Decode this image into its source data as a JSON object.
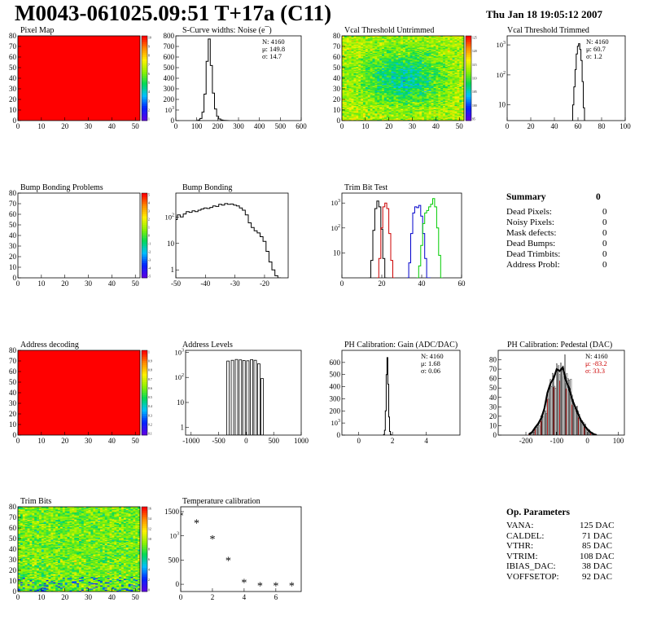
{
  "header": {
    "title": "M0043-061025.09:51 T+17a (C11)",
    "date": "Thu Jan 18 19:05:12 2007"
  },
  "colors": {
    "red": "#ff0000",
    "black": "#000000",
    "green": "#00cc00",
    "blue": "#0000cc",
    "darkred": "#cc0000"
  },
  "chart_data": [
    {
      "id": "pixel-map",
      "type": "heatmap",
      "title": "Pixel Map",
      "fill": "uniform-max",
      "xticks": [
        "0",
        "10",
        "20",
        "30",
        "40",
        "50"
      ],
      "yticks": [
        "0",
        "10",
        "20",
        "30",
        "40",
        "50",
        "60",
        "70",
        "80"
      ],
      "xlim": [
        0,
        52
      ],
      "ylim": [
        0,
        80
      ],
      "zticks": [
        "10",
        "9",
        "8",
        "7",
        "6",
        "5",
        "4",
        "3",
        "2",
        "1"
      ]
    },
    {
      "id": "scurve-noise",
      "type": "line",
      "title": "S-Curve widths: Noise (e¯)",
      "stats": {
        "n": "N: 4160",
        "mu": "μ: 149.8",
        "sigma": "σ: 14.7"
      },
      "xticks": [
        "0",
        "100",
        "200",
        "300",
        "400",
        "500",
        "600"
      ],
      "yticks": [
        "0",
        "100",
        "200",
        "300",
        "400",
        "500",
        "600",
        "700",
        "800"
      ],
      "xlim": [
        0,
        600
      ],
      "ylim": [
        0,
        800
      ],
      "x": [
        100,
        110,
        120,
        130,
        140,
        150,
        160,
        170,
        180,
        190,
        200,
        210,
        220,
        230,
        240,
        250
      ],
      "y": [
        0,
        5,
        20,
        80,
        250,
        560,
        770,
        520,
        260,
        110,
        40,
        15,
        5,
        2,
        1,
        0
      ]
    },
    {
      "id": "vcal-untrimmed",
      "type": "heatmap",
      "title": "Vcal Threshold Untrimmed",
      "fill": "noise",
      "xticks": [
        "0",
        "10",
        "20",
        "30",
        "40",
        "50"
      ],
      "yticks": [
        "0",
        "10",
        "20",
        "30",
        "40",
        "50",
        "60",
        "70",
        "80"
      ],
      "xlim": [
        0,
        52
      ],
      "ylim": [
        0,
        80
      ],
      "zticks": [
        "125",
        "120",
        "115",
        "110",
        "105",
        "100",
        "95"
      ]
    },
    {
      "id": "vcal-trimmed",
      "type": "line",
      "title": "Vcal Threshold Trimmed",
      "ylog": true,
      "stats": {
        "n": "N: 4160",
        "mu": "μ: 60.7",
        "sigma": "σ:  1.2"
      },
      "xticks": [
        "0",
        "20",
        "40",
        "60",
        "80",
        "100"
      ],
      "yticks": [
        "10",
        "10²",
        "10³"
      ],
      "xlim": [
        0,
        100
      ],
      "ylim": [
        3,
        2000
      ],
      "x": [
        55,
        56,
        57,
        58,
        59,
        60,
        61,
        62,
        63,
        64,
        65,
        66
      ],
      "y": [
        3,
        10,
        40,
        150,
        500,
        900,
        1100,
        700,
        300,
        60,
        8,
        3
      ]
    },
    {
      "id": "bump-problems",
      "type": "heatmap",
      "title": "Bump Bonding Problems",
      "fill": "empty",
      "xticks": [
        "0",
        "10",
        "20",
        "30",
        "40",
        "50"
      ],
      "yticks": [
        "0",
        "10",
        "20",
        "30",
        "40",
        "50",
        "60",
        "70",
        "80"
      ],
      "xlim": [
        0,
        52
      ],
      "ylim": [
        0,
        80
      ],
      "zticks": [
        "5",
        "4",
        "3",
        "2",
        "1",
        "0",
        "-1",
        "-2",
        "-3",
        "-4",
        "-5"
      ]
    },
    {
      "id": "bump-bonding",
      "type": "line",
      "title": "Bump Bonding",
      "ylog": true,
      "xticks": [
        "-50",
        "-40",
        "-30",
        "-20"
      ],
      "yticks": [
        "1",
        "10",
        "10²"
      ],
      "xlim": [
        -50,
        -12
      ],
      "ylim": [
        0.5,
        800
      ],
      "x": [
        -50,
        -49,
        -48,
        -47,
        -46,
        -45,
        -44,
        -43,
        -42,
        -41,
        -40,
        -39,
        -38,
        -37,
        -36,
        -35,
        -34,
        -33,
        -32,
        -31,
        -30,
        -29,
        -28,
        -27,
        -26,
        -25,
        -24,
        -23,
        -22,
        -21,
        -20,
        -19,
        -18,
        -17,
        -16,
        -15
      ],
      "y": [
        80,
        120,
        100,
        130,
        160,
        150,
        170,
        160,
        180,
        200,
        220,
        210,
        230,
        260,
        250,
        300,
        280,
        320,
        300,
        310,
        280,
        260,
        220,
        180,
        120,
        60,
        40,
        30,
        25,
        18,
        12,
        5,
        2,
        1,
        0.6,
        0.5
      ]
    },
    {
      "id": "trim-bit-test",
      "type": "line",
      "title": "Trim Bit Test",
      "ylog": true,
      "xticks": [
        "0",
        "20",
        "40",
        "60"
      ],
      "yticks": [
        "10",
        "10²",
        "10³"
      ],
      "xlim": [
        0,
        60
      ],
      "ylim": [
        1,
        2500
      ],
      "series": [
        {
          "color": "#000000",
          "x": [
            14,
            15,
            16,
            17,
            18,
            19,
            20,
            21,
            22
          ],
          "y": [
            1,
            5,
            80,
            600,
            1200,
            700,
            90,
            6,
            1
          ]
        },
        {
          "color": "#cc0000",
          "x": [
            18,
            19,
            20,
            21,
            22,
            23,
            24,
            25,
            26
          ],
          "y": [
            1,
            6,
            100,
            700,
            1000,
            600,
            60,
            5,
            1
          ]
        },
        {
          "color": "#0000cc",
          "x": [
            33,
            34,
            35,
            36,
            37,
            38,
            39,
            40,
            41,
            42,
            43,
            44
          ],
          "y": [
            1,
            4,
            60,
            400,
            700,
            650,
            800,
            300,
            60,
            6,
            1,
            1
          ]
        },
        {
          "color": "#00cc00",
          "x": [
            38,
            39,
            40,
            41,
            42,
            43,
            44,
            45,
            46,
            47,
            48,
            49,
            50
          ],
          "y": [
            1,
            3,
            20,
            150,
            400,
            500,
            700,
            900,
            1500,
            700,
            100,
            8,
            1
          ]
        }
      ]
    },
    {
      "id": "address-decoding",
      "type": "heatmap",
      "title": "Address decoding",
      "fill": "uniform-max",
      "xticks": [
        "0",
        "10",
        "20",
        "30",
        "40",
        "50"
      ],
      "yticks": [
        "0",
        "10",
        "20",
        "30",
        "40",
        "50",
        "60",
        "70",
        "80"
      ],
      "xlim": [
        0,
        52
      ],
      "ylim": [
        0,
        80
      ],
      "zticks": [
        "1",
        "0.9",
        "0.8",
        "0.7",
        "0.6",
        "0.5",
        "0.4",
        "0.3",
        "0.2",
        "0.1"
      ]
    },
    {
      "id": "address-levels",
      "type": "line",
      "title": "Address Levels",
      "ylog": true,
      "xticks": [
        "-1000",
        "-500",
        "0",
        "500",
        "1000"
      ],
      "yticks": [
        "1",
        "10",
        "10²",
        "10³"
      ],
      "xlim": [
        -1100,
        1000
      ],
      "ylim": [
        0.5,
        1200
      ],
      "spikes": [
        -330,
        -250,
        -175,
        -105,
        -40,
        30,
        100,
        165,
        230,
        290
      ],
      "heights": [
        450,
        480,
        520,
        500,
        470,
        460,
        510,
        480,
        350,
        90
      ]
    },
    {
      "id": "ph-gain",
      "type": "line",
      "title": "PH Calibration: Gain (ADC/DAC)",
      "stats": {
        "n": "N: 4160",
        "mu": "μ: 1.68",
        "sigma": "σ: 0.06"
      },
      "xticks": [
        "0",
        "2",
        "4"
      ],
      "yticks": [
        "0",
        "100",
        "200",
        "300",
        "400",
        "500",
        "600"
      ],
      "xlim": [
        -1,
        6
      ],
      "ylim": [
        0,
        700
      ],
      "x": [
        1.45,
        1.5,
        1.55,
        1.6,
        1.65,
        1.7,
        1.75,
        1.8,
        1.85,
        1.9,
        1.95
      ],
      "y": [
        0,
        5,
        40,
        200,
        500,
        640,
        420,
        150,
        30,
        5,
        0
      ]
    },
    {
      "id": "ph-pedestal",
      "type": "line",
      "title": "PH Calibration: Pedestal (DAC)",
      "stats": {
        "n": "N: 4160",
        "mu": "μ: -83.2",
        "sigma": "σ: 33.3"
      },
      "xticks": [
        "-200",
        "-100",
        "0",
        "100"
      ],
      "yticks": [
        "0",
        "10",
        "20",
        "30",
        "40",
        "50",
        "60",
        "70",
        "80"
      ],
      "xlim": [
        -290,
        120
      ],
      "ylim": [
        0,
        90
      ],
      "x": [
        -190,
        -180,
        -170,
        -160,
        -150,
        -140,
        -130,
        -120,
        -110,
        -100,
        -90,
        -80,
        -70,
        -60,
        -50,
        -40,
        -30,
        -20,
        -10,
        0,
        10,
        20,
        30
      ],
      "y": [
        1,
        3,
        8,
        12,
        18,
        28,
        45,
        55,
        60,
        70,
        68,
        72,
        58,
        50,
        38,
        30,
        22,
        15,
        10,
        6,
        3,
        1,
        0
      ]
    },
    {
      "id": "trim-bits",
      "type": "heatmap",
      "title": "Trim Bits",
      "fill": "trimbits",
      "xticks": [
        "0",
        "10",
        "20",
        "30",
        "40",
        "50"
      ],
      "yticks": [
        "0",
        "10",
        "20",
        "30",
        "40",
        "50",
        "60",
        "70",
        "80"
      ],
      "xlim": [
        0,
        52
      ],
      "ylim": [
        0,
        80
      ],
      "zticks": [
        "16",
        "14",
        "12",
        "10",
        "8",
        "6",
        "4",
        "2",
        "0"
      ]
    },
    {
      "id": "temperature-calibration",
      "type": "scatter",
      "title": "Temperature calibration",
      "xticks": [
        "0",
        "2",
        "4",
        "6"
      ],
      "yticks": [
        "0",
        "500",
        "1000",
        "1500"
      ],
      "xlim": [
        0,
        7.6
      ],
      "ylim": [
        -150,
        1600
      ],
      "x": [
        0,
        1,
        2,
        3,
        4,
        5,
        6,
        7
      ],
      "y": [
        1420,
        1270,
        940,
        500,
        40,
        -20,
        -20,
        -20
      ]
    }
  ],
  "summary": {
    "title": "Summary",
    "total": "0",
    "rows": [
      {
        "label": "Dead Pixels:",
        "value": "0"
      },
      {
        "label": "Noisy Pixels:",
        "value": "0"
      },
      {
        "label": "Mask defects:",
        "value": "0"
      },
      {
        "label": "Dead Bumps:",
        "value": "0"
      },
      {
        "label": "Dead Trimbits:",
        "value": "0"
      },
      {
        "label": "Address Probl:",
        "value": "0"
      }
    ]
  },
  "op_params": {
    "title": "Op. Parameters",
    "rows": [
      {
        "label": "VANA:",
        "value": "125 DAC"
      },
      {
        "label": "CALDEL:",
        "value": "71 DAC"
      },
      {
        "label": "VTHR:",
        "value": "85 DAC"
      },
      {
        "label": "VTRIM:",
        "value": "108 DAC"
      },
      {
        "label": "IBIAS_DAC:",
        "value": "38 DAC"
      },
      {
        "label": "VOFFSETOP:",
        "value": "92 DAC"
      }
    ]
  }
}
